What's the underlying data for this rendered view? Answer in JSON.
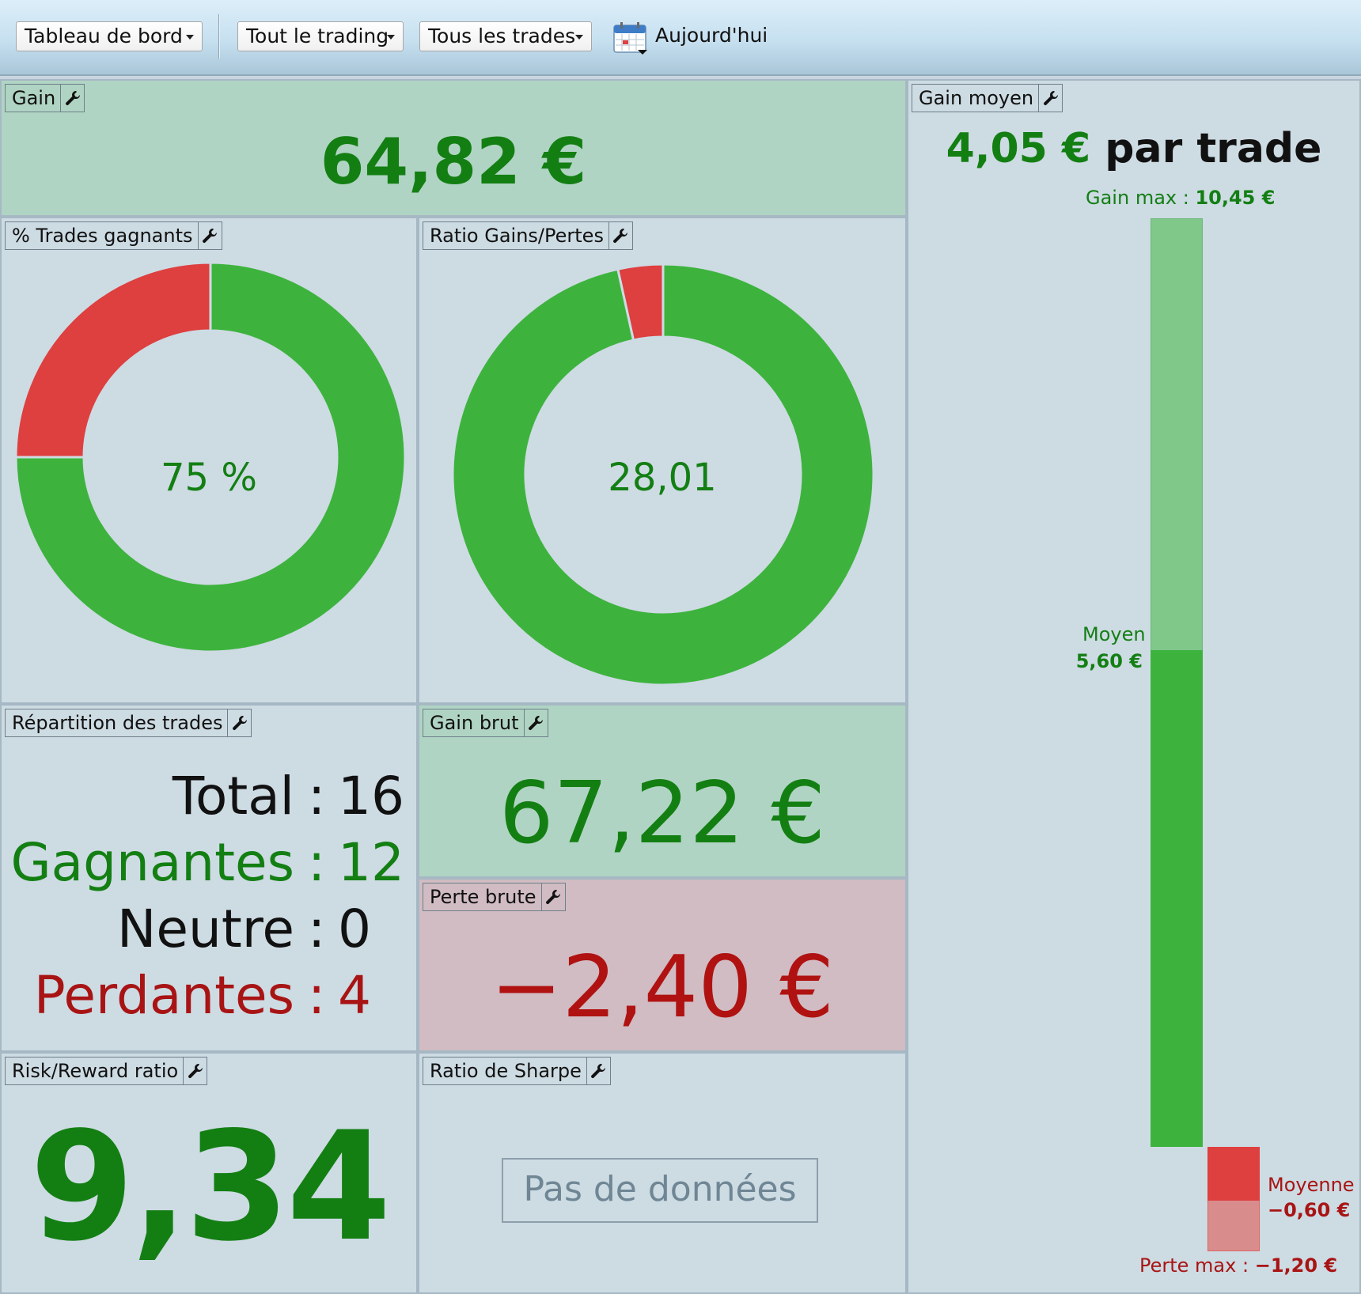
{
  "toolbar": {
    "dashboard_label": "Tableau de bord",
    "trading_label": "Tout le trading",
    "trades_label": "Tous les trades",
    "date_label": "Aujourd'hui"
  },
  "panels": {
    "gain": {
      "title": "Gain",
      "value": "64,82 €"
    },
    "winning_pct": {
      "title": "% Trades gagnants",
      "center": "75 %",
      "win_fraction": 0.75
    },
    "ratio": {
      "title": "Ratio Gains/Pertes",
      "center": "28,01",
      "win_fraction": 0.9655
    },
    "distribution": {
      "title": "Répartition des trades",
      "rows": [
        {
          "label": "Total",
          "value": "16",
          "color": "#111111"
        },
        {
          "label": "Gagnantes",
          "value": "12",
          "color": "#137f13"
        },
        {
          "label": "Neutre",
          "value": "0",
          "color": "#111111"
        },
        {
          "label": "Perdantes",
          "value": "4",
          "color": "#a81414"
        }
      ]
    },
    "gross_gain": {
      "title": "Gain brut",
      "value": "67,22 €"
    },
    "gross_loss": {
      "title": "Perte brute",
      "value": "−2,40 €"
    },
    "risk_reward": {
      "title": "Risk/Reward ratio",
      "value": "9,34"
    },
    "sharpe": {
      "title": "Ratio de Sharpe",
      "no_data": "Pas de données"
    },
    "avg_gain": {
      "title": "Gain moyen",
      "headline_value": "4,05 €",
      "headline_suffix": "par trade",
      "max_gain_label": "Gain max :",
      "max_gain_value": "10,45 €",
      "avg_win_label": "Moyen",
      "avg_win_value": "5,60 €",
      "avg_loss_label": "Moyenne",
      "avg_loss_value": "−0,60 €",
      "max_loss_label": "Perte max :",
      "max_loss_value": "−1,20 €"
    }
  },
  "colors": {
    "green": "#3db33d",
    "red": "#de3f3f",
    "text_green": "#137f13",
    "text_red": "#a81414"
  }
}
